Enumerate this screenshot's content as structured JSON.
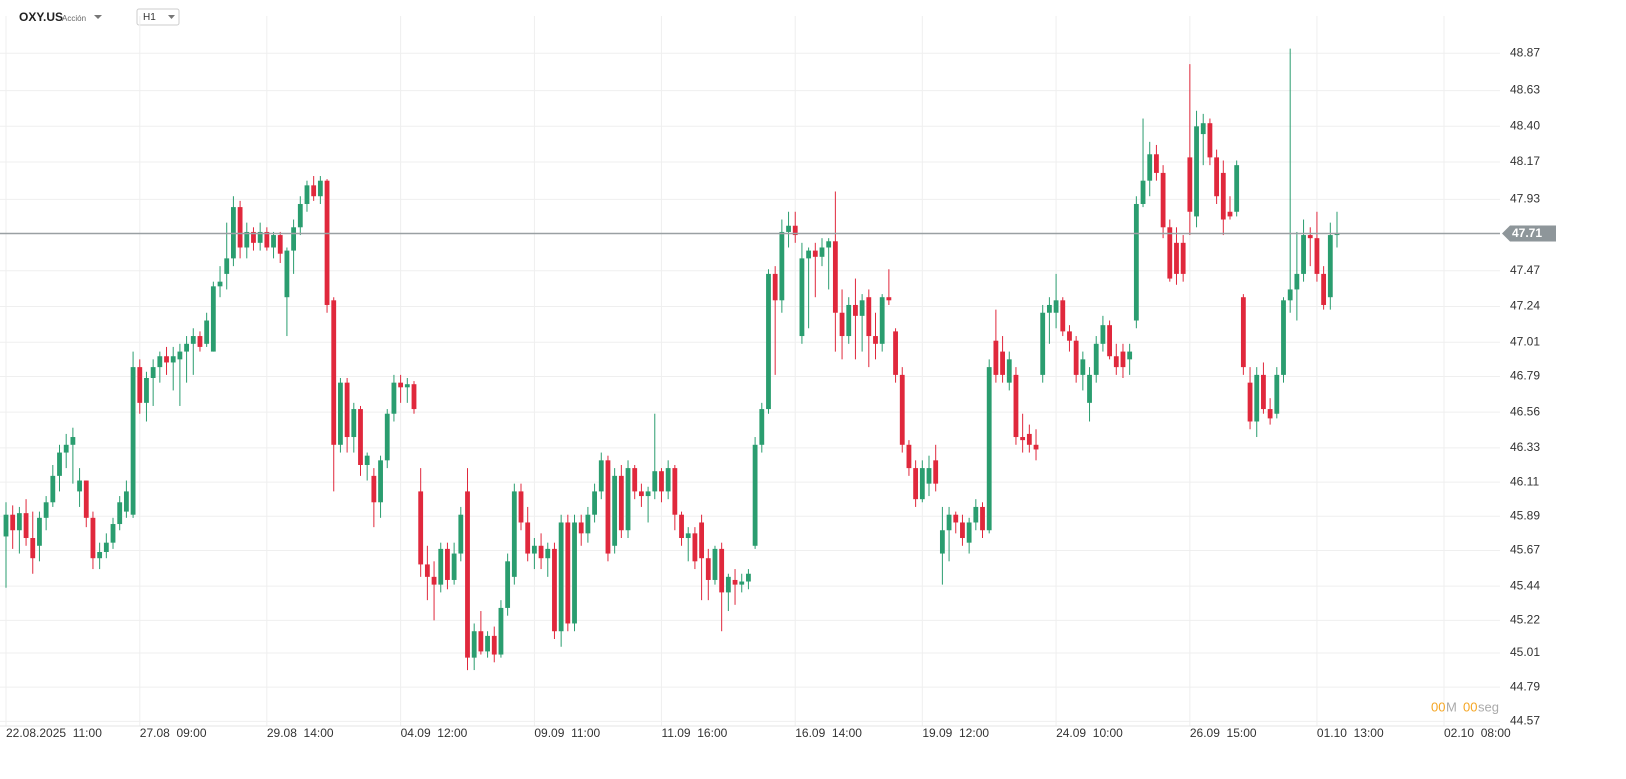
{
  "header": {
    "symbol": "OXY.US",
    "kind": "Acción",
    "interval": "H1"
  },
  "countdown": {
    "minutes": "00",
    "minutes_unit": "M",
    "seconds": "00",
    "seconds_unit": "seg"
  },
  "chart_data": {
    "type": "candlestick",
    "colors": {
      "up": "#2a9d6f",
      "down": "#e0283c"
    },
    "grid": true,
    "last_price": 47.71,
    "ylim": [
      44.54,
      49.11
    ],
    "yticks": [
      48.87,
      48.63,
      {
        "value": 48.4,
        "label": "48.40"
      },
      48.17,
      47.93,
      47.47,
      47.24,
      47.01,
      46.79,
      46.56,
      46.33,
      46.11,
      45.89,
      45.67,
      45.44,
      45.22,
      45.01,
      44.79,
      44.57
    ],
    "xticks": [
      {
        "value": 0,
        "label": "22.08.2025  11:00"
      },
      {
        "value": 20,
        "label": "27.08  09:00"
      },
      {
        "value": 39,
        "label": "29.08  14:00"
      },
      {
        "value": 59,
        "label": "04.09  12:00"
      },
      {
        "value": 79,
        "label": "09.09  11:00"
      },
      {
        "value": 98,
        "label": "11.09  16:00"
      },
      {
        "value": 118,
        "label": "16.09  14:00"
      },
      {
        "value": 137,
        "label": "19.09  12:00"
      },
      {
        "value": 157,
        "label": "24.09  10:00"
      },
      {
        "value": 177,
        "label": "26.09  15:00"
      },
      {
        "value": 196,
        "label": "01.10  13:00"
      },
      {
        "value": 215,
        "label": "02.10  08:00"
      }
    ],
    "ohlc": [
      [
        45.76,
        45.98,
        45.43,
        45.9
      ],
      [
        45.9,
        45.96,
        45.68,
        45.8
      ],
      [
        45.8,
        45.95,
        45.65,
        45.91
      ],
      [
        45.91,
        46.0,
        45.7,
        45.75
      ],
      [
        45.75,
        45.92,
        45.52,
        45.62
      ],
      [
        45.7,
        45.92,
        45.6,
        45.88
      ],
      [
        45.88,
        46.02,
        45.8,
        45.98
      ],
      [
        45.98,
        46.22,
        45.95,
        46.15
      ],
      [
        46.15,
        46.35,
        46.05,
        46.3
      ],
      [
        46.3,
        46.42,
        46.2,
        46.35
      ],
      [
        46.35,
        46.46,
        46.1,
        46.4
      ],
      [
        46.05,
        46.2,
        45.95,
        46.12
      ],
      [
        46.12,
        46.12,
        45.82,
        45.88
      ],
      [
        45.88,
        45.92,
        45.55,
        45.62
      ],
      [
        45.62,
        45.72,
        45.55,
        45.66
      ],
      [
        45.66,
        45.78,
        45.62,
        45.72
      ],
      [
        45.72,
        45.88,
        45.68,
        45.84
      ],
      [
        45.84,
        46.02,
        45.8,
        45.98
      ],
      [
        45.92,
        46.12,
        45.88,
        46.05
      ],
      [
        45.9,
        46.95,
        45.88,
        46.85
      ],
      [
        46.85,
        46.9,
        46.55,
        46.62
      ],
      [
        46.62,
        46.82,
        46.5,
        46.78
      ],
      [
        46.78,
        46.9,
        46.6,
        46.85
      ],
      [
        46.85,
        46.95,
        46.75,
        46.92
      ],
      [
        46.92,
        46.98,
        46.8,
        46.88
      ],
      [
        46.88,
        46.98,
        46.7,
        46.92
      ],
      [
        46.9,
        47.0,
        46.6,
        46.95
      ],
      [
        46.95,
        47.05,
        46.75,
        47.0
      ],
      [
        47.0,
        47.1,
        46.8,
        47.05
      ],
      [
        47.05,
        47.08,
        46.95,
        46.98
      ],
      [
        47.0,
        47.2,
        46.98,
        47.15
      ],
      [
        46.95,
        47.4,
        46.95,
        47.37
      ],
      [
        47.37,
        47.5,
        47.3,
        47.4
      ],
      [
        47.45,
        47.78,
        47.35,
        47.55
      ],
      [
        47.55,
        47.95,
        47.5,
        47.88
      ],
      [
        47.88,
        47.92,
        47.55,
        47.62
      ],
      [
        47.62,
        47.78,
        47.55,
        47.72
      ],
      [
        47.72,
        47.75,
        47.6,
        47.65
      ],
      [
        47.65,
        47.78,
        47.6,
        47.72
      ],
      [
        47.72,
        47.75,
        47.6,
        47.62
      ],
      [
        47.62,
        47.72,
        47.55,
        47.7
      ],
      [
        47.7,
        47.72,
        47.52,
        47.58
      ],
      [
        47.3,
        47.62,
        47.05,
        47.6
      ],
      [
        47.6,
        47.8,
        47.45,
        47.75
      ],
      [
        47.75,
        47.95,
        47.7,
        47.9
      ],
      [
        47.9,
        48.05,
        47.85,
        48.02
      ],
      [
        48.02,
        48.08,
        47.92,
        47.95
      ],
      [
        47.95,
        48.08,
        47.9,
        48.05
      ],
      [
        48.05,
        48.06,
        47.2,
        47.25
      ],
      [
        47.28,
        47.3,
        46.05,
        46.35
      ],
      [
        46.35,
        46.78,
        46.3,
        46.75
      ],
      [
        46.75,
        46.78,
        46.3,
        46.4
      ],
      [
        46.4,
        46.62,
        46.3,
        46.58
      ],
      [
        46.58,
        46.6,
        46.15,
        46.22
      ],
      [
        46.22,
        46.3,
        46.12,
        46.28
      ],
      [
        46.15,
        46.2,
        45.82,
        45.98
      ],
      [
        45.98,
        46.28,
        45.88,
        46.25
      ],
      [
        46.25,
        46.58,
        46.2,
        46.55
      ],
      [
        46.55,
        46.8,
        46.5,
        46.75
      ],
      [
        46.75,
        46.8,
        46.62,
        46.72
      ],
      [
        46.72,
        46.78,
        46.62,
        46.74
      ],
      [
        46.74,
        46.76,
        46.55,
        46.58
      ],
      [
        46.05,
        46.2,
        45.5,
        45.58
      ],
      [
        45.58,
        45.7,
        45.35,
        45.5
      ],
      [
        45.5,
        45.6,
        45.22,
        45.45
      ],
      [
        45.45,
        45.72,
        45.4,
        45.68
      ],
      [
        45.68,
        45.72,
        45.42,
        45.48
      ],
      [
        45.48,
        45.72,
        45.45,
        45.65
      ],
      [
        45.65,
        45.95,
        45.6,
        45.9
      ],
      [
        46.05,
        46.2,
        44.9,
        44.98
      ],
      [
        44.98,
        45.2,
        44.9,
        45.15
      ],
      [
        45.15,
        45.28,
        45.0,
        45.02
      ],
      [
        45.02,
        45.15,
        44.98,
        45.12
      ],
      [
        45.12,
        45.18,
        44.95,
        45.0
      ],
      [
        45.0,
        45.35,
        44.98,
        45.3
      ],
      [
        45.3,
        45.65,
        45.25,
        45.6
      ],
      [
        45.5,
        46.1,
        45.45,
        46.05
      ],
      [
        46.05,
        46.1,
        45.8,
        45.85
      ],
      [
        45.85,
        45.95,
        45.6,
        45.65
      ],
      [
        45.65,
        45.75,
        45.55,
        45.7
      ],
      [
        45.7,
        45.78,
        45.55,
        45.62
      ],
      [
        45.62,
        45.72,
        45.5,
        45.68
      ],
      [
        45.68,
        45.72,
        45.1,
        45.15
      ],
      [
        45.15,
        45.9,
        45.05,
        45.85
      ],
      [
        45.85,
        45.9,
        45.15,
        45.2
      ],
      [
        45.2,
        45.9,
        45.15,
        45.85
      ],
      [
        45.85,
        45.9,
        45.7,
        45.78
      ],
      [
        45.78,
        45.95,
        45.72,
        45.9
      ],
      [
        45.9,
        46.1,
        45.85,
        46.05
      ],
      [
        46.05,
        46.3,
        46.0,
        46.25
      ],
      [
        46.25,
        46.28,
        45.6,
        45.65
      ],
      [
        45.7,
        46.2,
        45.65,
        46.15
      ],
      [
        46.15,
        46.22,
        45.75,
        45.8
      ],
      [
        45.8,
        46.25,
        45.75,
        46.2
      ],
      [
        46.2,
        46.22,
        46.0,
        46.05
      ],
      [
        46.05,
        46.1,
        45.95,
        46.02
      ],
      [
        46.02,
        46.08,
        45.85,
        46.05
      ],
      [
        46.05,
        46.55,
        46.0,
        46.18
      ],
      [
        46.18,
        46.2,
        45.98,
        46.05
      ],
      [
        46.05,
        46.25,
        46.0,
        46.2
      ],
      [
        46.2,
        46.22,
        45.8,
        45.9
      ],
      [
        45.9,
        45.92,
        45.7,
        45.75
      ],
      [
        45.75,
        45.82,
        45.6,
        45.78
      ],
      [
        45.78,
        45.82,
        45.55,
        45.6
      ],
      [
        45.85,
        45.9,
        45.35,
        45.62
      ],
      [
        45.62,
        45.68,
        45.35,
        45.48
      ],
      [
        45.48,
        45.7,
        45.45,
        45.68
      ],
      [
        45.68,
        45.72,
        45.15,
        45.4
      ],
      [
        45.4,
        45.52,
        45.28,
        45.5
      ],
      [
        45.48,
        45.55,
        45.32,
        45.45
      ],
      [
        45.45,
        45.52,
        45.4,
        45.47
      ],
      [
        45.47,
        45.55,
        45.42,
        45.52
      ],
      [
        45.7,
        46.4,
        45.68,
        46.35
      ],
      [
        46.35,
        46.62,
        46.3,
        46.58
      ],
      [
        46.58,
        47.48,
        46.55,
        47.45
      ],
      [
        47.45,
        47.5,
        46.8,
        47.28
      ],
      [
        47.28,
        47.8,
        47.2,
        47.72
      ],
      [
        47.72,
        47.85,
        47.62,
        47.76
      ],
      [
        47.76,
        47.85,
        47.65,
        47.7
      ],
      [
        47.05,
        47.65,
        47.0,
        47.55
      ],
      [
        47.55,
        47.62,
        47.1,
        47.6
      ],
      [
        47.6,
        47.65,
        47.3,
        47.56
      ],
      [
        47.56,
        47.68,
        47.5,
        47.62
      ],
      [
        47.62,
        47.68,
        47.35,
        47.66
      ],
      [
        47.66,
        47.98,
        46.95,
        47.2
      ],
      [
        47.2,
        47.35,
        46.9,
        47.05
      ],
      [
        47.05,
        47.3,
        47.0,
        47.25
      ],
      [
        47.25,
        47.42,
        46.9,
        47.18
      ],
      [
        47.18,
        47.32,
        46.95,
        47.28
      ],
      [
        47.3,
        47.35,
        46.85,
        47.05
      ],
      [
        47.05,
        47.2,
        46.9,
        47.0
      ],
      [
        47.0,
        47.32,
        46.95,
        47.3
      ],
      [
        47.3,
        47.48,
        47.25,
        47.28
      ],
      [
        47.08,
        47.1,
        46.75,
        46.8
      ],
      [
        46.8,
        46.85,
        46.3,
        46.35
      ],
      [
        46.35,
        46.38,
        46.15,
        46.2
      ],
      [
        46.2,
        46.25,
        45.95,
        46.0
      ],
      [
        46.0,
        46.25,
        45.98,
        46.2
      ],
      [
        46.1,
        46.28,
        46.02,
        46.2
      ],
      [
        46.25,
        46.35,
        46.05,
        46.1
      ],
      [
        45.65,
        45.95,
        45.45,
        45.8
      ],
      [
        45.8,
        45.95,
        45.6,
        45.9
      ],
      [
        45.9,
        45.92,
        45.78,
        45.85
      ],
      [
        45.85,
        45.9,
        45.7,
        45.75
      ],
      [
        45.72,
        45.88,
        45.65,
        45.85
      ],
      [
        45.85,
        46.0,
        45.8,
        45.95
      ],
      [
        45.95,
        45.98,
        45.75,
        45.8
      ],
      [
        45.8,
        46.9,
        45.78,
        46.85
      ],
      [
        47.02,
        47.22,
        46.75,
        46.8
      ],
      [
        46.95,
        47.05,
        46.75,
        46.8
      ],
      [
        46.75,
        46.95,
        46.7,
        46.9
      ],
      [
        46.8,
        46.85,
        46.35,
        46.4
      ],
      [
        46.4,
        46.55,
        46.3,
        46.38
      ],
      [
        46.42,
        46.48,
        46.3,
        46.35
      ],
      [
        46.35,
        46.45,
        46.25,
        46.32
      ],
      [
        46.8,
        47.25,
        46.75,
        47.2
      ],
      [
        47.2,
        47.3,
        47.0,
        47.25
      ],
      [
        47.2,
        47.45,
        47.1,
        47.28
      ],
      [
        47.28,
        47.3,
        47.05,
        47.08
      ],
      [
        47.08,
        47.12,
        46.95,
        47.02
      ],
      [
        47.02,
        47.05,
        46.75,
        46.8
      ],
      [
        46.8,
        46.95,
        46.7,
        46.9
      ],
      [
        46.62,
        46.85,
        46.5,
        46.8
      ],
      [
        46.8,
        47.05,
        46.75,
        47.0
      ],
      [
        47.0,
        47.18,
        46.95,
        47.12
      ],
      [
        47.12,
        47.15,
        46.9,
        46.92
      ],
      [
        46.92,
        47.0,
        46.8,
        46.85
      ],
      [
        46.95,
        47.0,
        46.78,
        46.85
      ],
      [
        46.9,
        47.0,
        46.8,
        46.95
      ],
      [
        47.15,
        47.95,
        47.1,
        47.9
      ],
      [
        47.9,
        48.45,
        47.88,
        48.05
      ],
      [
        48.05,
        48.3,
        47.95,
        48.22
      ],
      [
        48.22,
        48.28,
        48.05,
        48.1
      ],
      [
        48.1,
        48.15,
        47.68,
        47.75
      ],
      [
        47.75,
        47.8,
        47.4,
        47.42
      ],
      [
        47.65,
        47.75,
        47.38,
        47.45
      ],
      [
        47.65,
        47.7,
        47.4,
        47.45
      ],
      [
        48.2,
        48.8,
        47.7,
        47.85
      ],
      [
        47.82,
        48.5,
        47.75,
        48.4
      ],
      [
        48.35,
        48.48,
        48.15,
        48.42
      ],
      [
        48.42,
        48.45,
        48.15,
        48.2
      ],
      [
        48.2,
        48.25,
        47.9,
        47.95
      ],
      [
        48.1,
        48.18,
        47.7,
        47.8
      ],
      [
        47.85,
        47.95,
        47.8,
        47.82
      ],
      [
        47.85,
        48.18,
        47.82,
        48.15
      ],
      [
        47.3,
        47.32,
        46.8,
        46.85
      ],
      [
        46.75,
        46.85,
        46.45,
        46.5
      ],
      [
        46.5,
        46.85,
        46.4,
        46.8
      ],
      [
        46.8,
        46.88,
        46.55,
        46.58
      ],
      [
        46.58,
        46.65,
        46.48,
        46.52
      ],
      [
        46.55,
        46.85,
        46.52,
        46.8
      ],
      [
        46.8,
        47.3,
        46.75,
        47.28
      ],
      [
        47.28,
        48.9,
        47.2,
        47.35
      ],
      [
        47.35,
        47.72,
        47.15,
        47.45
      ],
      [
        47.45,
        47.8,
        47.4,
        47.7
      ],
      [
        47.7,
        47.75,
        47.5,
        47.68
      ],
      [
        47.68,
        47.85,
        47.4,
        47.45
      ],
      [
        47.45,
        47.5,
        47.22,
        47.25
      ],
      [
        47.3,
        47.78,
        47.22,
        47.7
      ],
      [
        47.7,
        47.85,
        47.62,
        47.71
      ]
    ]
  }
}
